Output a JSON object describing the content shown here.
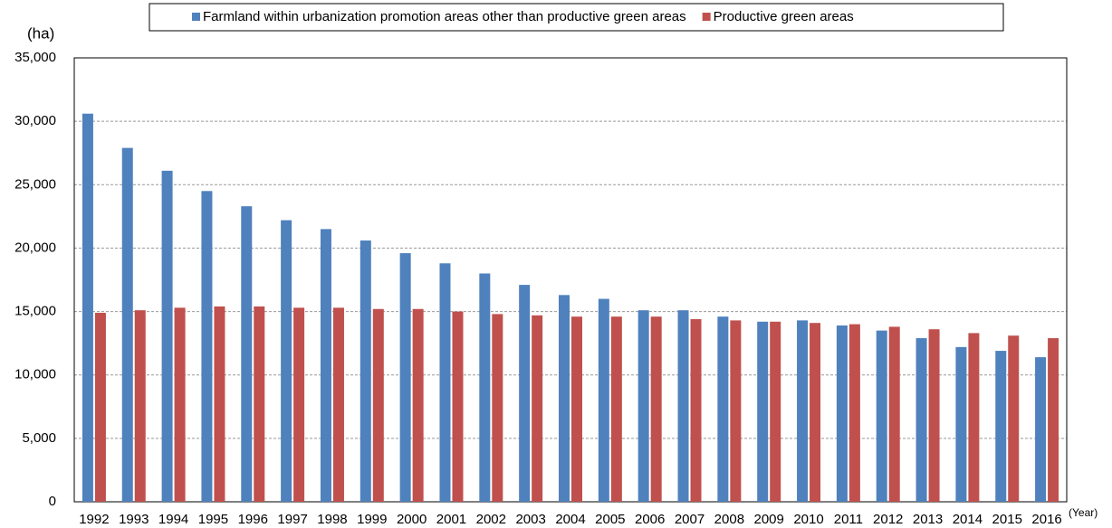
{
  "chart_data": {
    "type": "bar",
    "y_label": "(ha)",
    "x_label": "(Year)",
    "categories": [
      "1992",
      "1993",
      "1994",
      "1995",
      "1996",
      "1997",
      "1998",
      "1999",
      "2000",
      "2001",
      "2002",
      "2003",
      "2004",
      "2005",
      "2006",
      "2007",
      "2008",
      "2009",
      "2010",
      "2011",
      "2012",
      "2013",
      "2014",
      "2015",
      "2016"
    ],
    "series": [
      {
        "name": "Farmland within urbanization promotion areas other than productive green areas",
        "color": "#4f81bd",
        "values": [
          30600,
          27900,
          26100,
          24500,
          23300,
          22200,
          21500,
          20600,
          19600,
          18800,
          18000,
          17100,
          16300,
          16000,
          15100,
          15100,
          14600,
          14200,
          14300,
          13900,
          13500,
          12900,
          12200,
          11900,
          11400
        ]
      },
      {
        "name": "Productive green areas",
        "color": "#c0504d",
        "values": [
          14900,
          15100,
          15300,
          15400,
          15400,
          15300,
          15300,
          15200,
          15200,
          15000,
          14800,
          14700,
          14600,
          14600,
          14600,
          14400,
          14300,
          14200,
          14100,
          14000,
          13800,
          13600,
          13300,
          13100,
          12900
        ]
      }
    ],
    "ylim": [
      0,
      35000
    ],
    "yticks": [
      0,
      {
        "value": 5000,
        "label": "5,000"
      },
      {
        "value": 10000,
        "label": "10,000"
      },
      {
        "value": 15000,
        "label": "15,000"
      },
      {
        "value": 20000,
        "label": "20,000"
      },
      {
        "value": 25000,
        "label": "25,000"
      },
      {
        "value": 30000,
        "label": "30,000"
      },
      {
        "value": 35000,
        "label": "35,000"
      }
    ],
    "grid": true
  }
}
